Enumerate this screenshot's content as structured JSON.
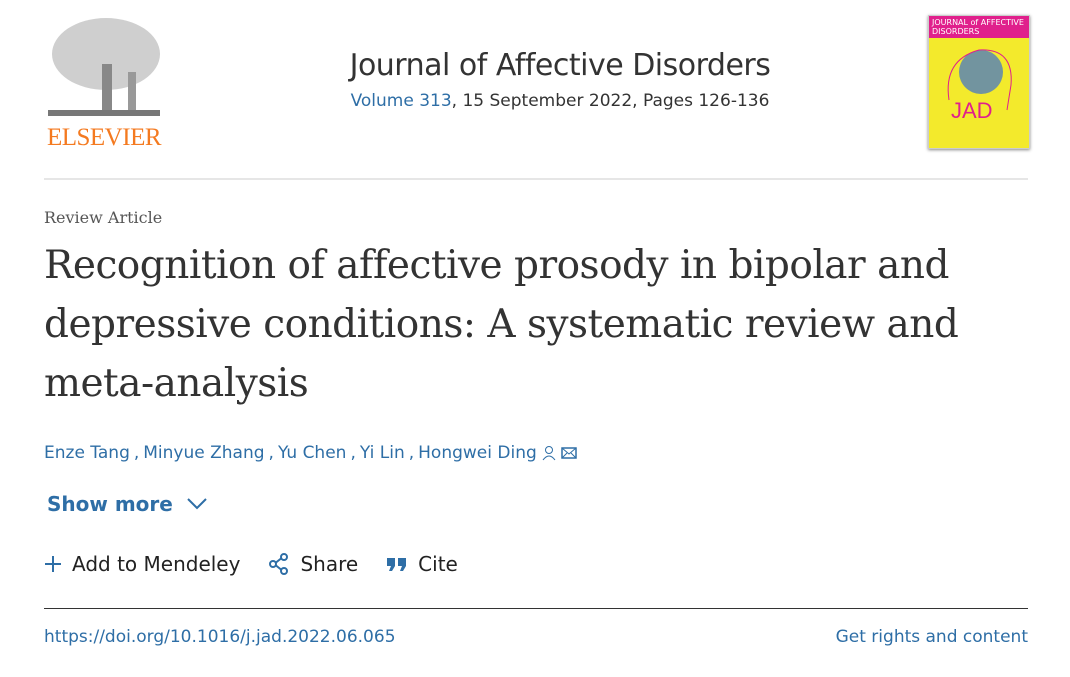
{
  "publisher": {
    "logo_text": "ELSEVIER"
  },
  "journal": {
    "title": "Journal of Affective Disorders",
    "volume_link": "Volume 313",
    "issue_info": ", 15 September 2022, Pages 126-136",
    "cover": {
      "band_text": "JOURNAL of AFFECTIVE DISORDERS",
      "abbr": "JAD"
    }
  },
  "article": {
    "type": "Review Article",
    "title": "Recognition of affective prosody in bipolar and depressive conditions: A systematic review and meta-analysis",
    "authors": [
      "Enze Tang",
      "Minyue Zhang",
      "Yu Chen",
      "Yi Lin",
      "Hongwei Ding"
    ]
  },
  "show_more": "Show more",
  "actions": {
    "mendeley": "Add to Mendeley",
    "share": "Share",
    "cite": "Cite"
  },
  "doi": "https://doi.org/10.1016/j.jad.2022.06.065",
  "rights": "Get rights and content",
  "colors": {
    "link": "#2e6ea6",
    "brand": "#f47a20"
  }
}
